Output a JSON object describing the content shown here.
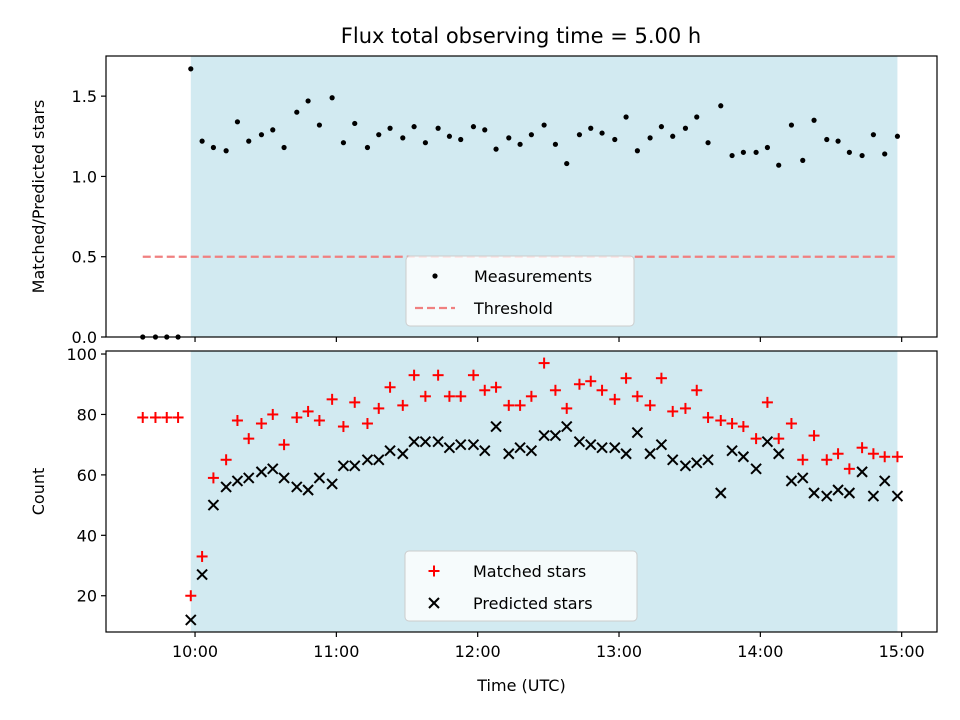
{
  "title": "Flux total observing time = 5.00 h",
  "colors": {
    "shade": "#add8e6",
    "measurement": "#000000",
    "threshold": "#f08080",
    "matched": "#ff0000",
    "predicted": "#000000"
  },
  "chart_data": [
    {
      "type": "scatter",
      "title": "Flux total observing time = 5.00 h",
      "xlabel": "",
      "ylabel": "Matched/Predicted stars",
      "xlim": [
        9.37,
        15.25
      ],
      "ylim": [
        0,
        1.75
      ],
      "yticks": [
        0.0,
        0.5,
        1.0,
        1.5
      ],
      "ytick_labels": [
        "0.0",
        "0.5",
        "1.0",
        "1.5"
      ],
      "xticks": [
        10,
        11,
        12,
        13,
        14,
        15
      ],
      "shaded_span": [
        9.97,
        14.97
      ],
      "threshold": {
        "name": "Threshold",
        "value": 0.5,
        "x": [
          9.63,
          14.97
        ]
      },
      "legend_position": "lower center",
      "series": [
        {
          "name": "Measurements",
          "x": [
            9.63,
            9.72,
            9.8,
            9.88,
            9.97,
            10.05,
            10.13,
            10.22,
            10.3,
            10.38,
            10.47,
            10.55,
            10.63,
            10.72,
            10.8,
            10.88,
            10.97,
            11.05,
            11.13,
            11.22,
            11.3,
            11.38,
            11.47,
            11.55,
            11.63,
            11.72,
            11.8,
            11.88,
            11.97,
            12.05,
            12.13,
            12.22,
            12.3,
            12.38,
            12.47,
            12.55,
            12.63,
            12.72,
            12.8,
            12.88,
            12.97,
            13.05,
            13.13,
            13.22,
            13.3,
            13.38,
            13.47,
            13.55,
            13.63,
            13.72,
            13.8,
            13.88,
            13.97,
            14.05,
            14.13,
            14.22,
            14.3,
            14.38,
            14.47,
            14.55,
            14.63,
            14.72,
            14.8,
            14.88,
            14.97
          ],
          "y": [
            0,
            0,
            0,
            0,
            1.67,
            1.22,
            1.18,
            1.16,
            1.34,
            1.22,
            1.26,
            1.29,
            1.18,
            1.4,
            1.47,
            1.32,
            1.49,
            1.21,
            1.33,
            1.18,
            1.26,
            1.3,
            1.24,
            1.31,
            1.21,
            1.3,
            1.25,
            1.23,
            1.31,
            1.29,
            1.17,
            1.24,
            1.2,
            1.26,
            1.32,
            1.2,
            1.08,
            1.26,
            1.3,
            1.27,
            1.23,
            1.37,
            1.16,
            1.24,
            1.31,
            1.25,
            1.3,
            1.37,
            1.21,
            1.44,
            1.13,
            1.15,
            1.15,
            1.18,
            1.07,
            1.32,
            1.1,
            1.35,
            1.23,
            1.22,
            1.15,
            1.13,
            1.26,
            1.14,
            1.25
          ]
        }
      ]
    },
    {
      "type": "scatter",
      "xlabel": "Time (UTC)",
      "ylabel": "Count",
      "xlim": [
        9.37,
        15.25
      ],
      "ylim": [
        8,
        101
      ],
      "yticks": [
        20,
        40,
        60,
        80,
        100
      ],
      "ytick_labels": [
        "20",
        "40",
        "60",
        "80",
        "100"
      ],
      "xticks": [
        10,
        11,
        12,
        13,
        14,
        15
      ],
      "xtick_labels": [
        "10:00",
        "11:00",
        "12:00",
        "13:00",
        "14:00",
        "15:00"
      ],
      "shaded_span": [
        9.97,
        14.97
      ],
      "legend_position": "lower center",
      "series": [
        {
          "name": "Matched stars",
          "marker": "+",
          "x": [
            9.63,
            9.72,
            9.8,
            9.88,
            9.97,
            10.05,
            10.13,
            10.22,
            10.3,
            10.38,
            10.47,
            10.55,
            10.63,
            10.72,
            10.8,
            10.88,
            10.97,
            11.05,
            11.13,
            11.22,
            11.3,
            11.38,
            11.47,
            11.55,
            11.63,
            11.72,
            11.8,
            11.88,
            11.97,
            12.05,
            12.13,
            12.22,
            12.3,
            12.38,
            12.47,
            12.55,
            12.63,
            12.72,
            12.8,
            12.88,
            12.97,
            13.05,
            13.13,
            13.22,
            13.3,
            13.38,
            13.47,
            13.55,
            13.63,
            13.72,
            13.8,
            13.88,
            13.97,
            14.05,
            14.13,
            14.22,
            14.3,
            14.38,
            14.47,
            14.55,
            14.63,
            14.72,
            14.8,
            14.88,
            14.97
          ],
          "y": [
            79,
            79,
            79,
            79,
            20,
            33,
            59,
            65,
            78,
            72,
            77,
            80,
            70,
            79,
            81,
            78,
            85,
            76,
            84,
            77,
            82,
            89,
            83,
            93,
            86,
            93,
            86,
            86,
            93,
            88,
            89,
            83,
            83,
            86,
            97,
            88,
            82,
            90,
            91,
            88,
            85,
            92,
            86,
            83,
            92,
            81,
            82,
            88,
            79,
            78,
            77,
            76,
            72,
            84,
            72,
            77,
            65,
            73,
            65,
            67,
            62,
            69,
            67,
            66,
            66
          ]
        },
        {
          "name": "Predicted stars",
          "marker": "x",
          "x": [
            9.97,
            10.05,
            10.13,
            10.22,
            10.3,
            10.38,
            10.47,
            10.55,
            10.63,
            10.72,
            10.8,
            10.88,
            10.97,
            11.05,
            11.13,
            11.22,
            11.3,
            11.38,
            11.47,
            11.55,
            11.63,
            11.72,
            11.8,
            11.88,
            11.97,
            12.05,
            12.13,
            12.22,
            12.3,
            12.38,
            12.47,
            12.55,
            12.63,
            12.72,
            12.8,
            12.88,
            12.97,
            13.05,
            13.13,
            13.22,
            13.3,
            13.38,
            13.47,
            13.55,
            13.63,
            13.72,
            13.8,
            13.88,
            13.97,
            14.05,
            14.13,
            14.22,
            14.3,
            14.38,
            14.47,
            14.55,
            14.63,
            14.72,
            14.8,
            14.88,
            14.97
          ],
          "y": [
            12,
            27,
            50,
            56,
            58,
            59,
            61,
            62,
            59,
            56,
            55,
            59,
            57,
            63,
            63,
            65,
            65,
            68,
            67,
            71,
            71,
            71,
            69,
            70,
            70,
            68,
            76,
            67,
            69,
            68,
            73,
            73,
            76,
            71,
            70,
            69,
            69,
            67,
            74,
            67,
            70,
            65,
            63,
            64,
            65,
            54,
            68,
            66,
            62,
            71,
            67,
            58,
            59,
            54,
            53,
            55,
            54,
            61,
            53,
            58,
            53
          ]
        }
      ]
    }
  ]
}
